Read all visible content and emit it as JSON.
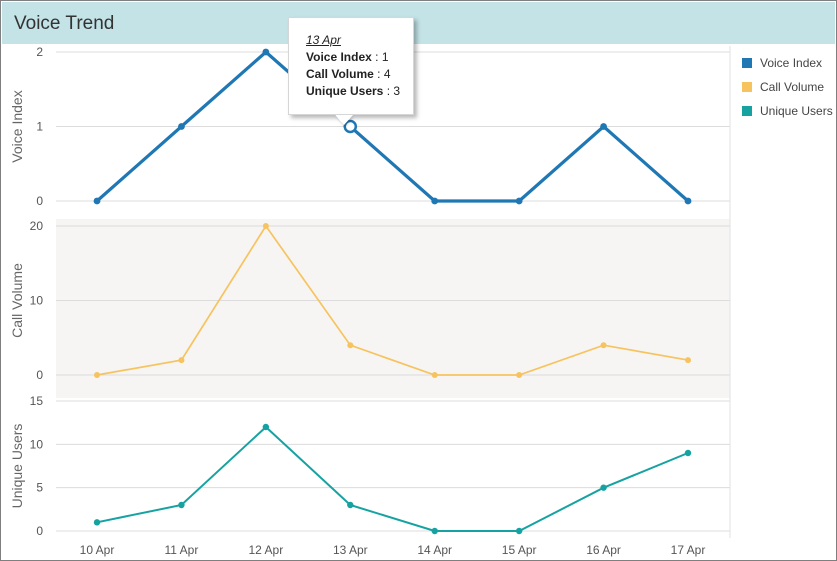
{
  "header": {
    "title": "Voice Trend"
  },
  "tooltip": {
    "date": "13 Apr",
    "rows": [
      {
        "label": "Voice Index",
        "value": "1"
      },
      {
        "label": "Call Volume",
        "value": "4"
      },
      {
        "label": "Unique Users",
        "value": "3"
      }
    ]
  },
  "legend": [
    {
      "label": "Voice Index",
      "color": "#1f77b4"
    },
    {
      "label": "Call Volume",
      "color": "#f7c35e"
    },
    {
      "label": "Unique Users",
      "color": "#17a2a2"
    }
  ],
  "chart_data": [
    {
      "type": "line",
      "x": [
        "10 Apr",
        "11 Apr",
        "12 Apr",
        "13 Apr",
        "14 Apr",
        "15 Apr",
        "16 Apr",
        "17 Apr"
      ],
      "series": [
        {
          "name": "Voice Index",
          "color": "#1f77b4",
          "values": [
            0,
            1,
            2,
            1,
            0,
            0,
            1,
            0
          ]
        }
      ],
      "ylabel": "Voice Index",
      "ylim": [
        0,
        2
      ],
      "yticks": [
        "0",
        "1",
        "2"
      ],
      "highlighted_point": {
        "x": "13 Apr",
        "value": 1
      },
      "grid": true
    },
    {
      "type": "line",
      "x": [
        "10 Apr",
        "11 Apr",
        "12 Apr",
        "13 Apr",
        "14 Apr",
        "15 Apr",
        "16 Apr",
        "17 Apr"
      ],
      "series": [
        {
          "name": "Call Volume",
          "color": "#f7c35e",
          "values": [
            0,
            2,
            20,
            4,
            0,
            0,
            4,
            2
          ]
        }
      ],
      "ylabel": "Call Volume",
      "ylim": [
        0,
        20
      ],
      "yticks": [
        "0",
        "10",
        "20"
      ],
      "grid": true
    },
    {
      "type": "line",
      "x": [
        "10 Apr",
        "11 Apr",
        "12 Apr",
        "13 Apr",
        "14 Apr",
        "15 Apr",
        "16 Apr",
        "17 Apr"
      ],
      "series": [
        {
          "name": "Unique Users",
          "color": "#17a2a2",
          "values": [
            1,
            3,
            12,
            3,
            0,
            0,
            5,
            9
          ]
        }
      ],
      "ylabel": "Unique Users",
      "ylim": [
        0,
        15
      ],
      "yticks": [
        "0",
        "5",
        "10",
        "15"
      ],
      "xlabel": "",
      "grid": true
    }
  ]
}
